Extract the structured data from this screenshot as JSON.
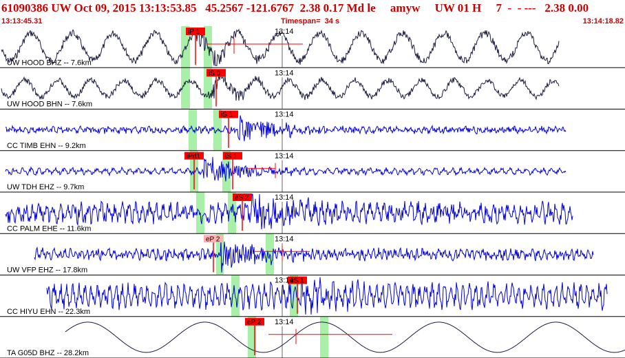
{
  "header": {
    "title": "61090386 UW Oct 09, 2015 13:13:53.85   45.2567 -121.6767  2.38 0.17 Md le     amyw     UW 01 H     7  -  - ---   2.38 0.00",
    "start_time": "13:13:45.31",
    "timespan": "Timespan=  34 s",
    "end_time": "13:14:18.82"
  },
  "colors": {
    "trace_black": "#1a1a40",
    "trace_blue": "#0000dd",
    "pick_red": "#ff0000",
    "pick_pink": "#ffb0b0",
    "window_green": "#a8f0a8",
    "header_red": "#cc0000"
  },
  "traces": [
    {
      "label": "UW HOOD BHZ -- 7.6km",
      "time_label": "13:14",
      "color": "black",
      "picks": [
        {
          "text": "iP 1",
          "tone": "red"
        }
      ]
    },
    {
      "label": "UW HOOD BHN -- 7.6km",
      "time_label": "13:14",
      "color": "black",
      "picks": [
        {
          "text": "iS 0",
          "tone": "red"
        }
      ]
    },
    {
      "label": "CC TIMB EHN -- 9.2km",
      "time_label": "13:14",
      "color": "blue",
      "picks": [
        {
          "text": "iS 1",
          "tone": "red"
        }
      ]
    },
    {
      "label": "UW TDH EHZ -- 9.7km",
      "time_label": "13:14",
      "color": "blue",
      "picks": [
        {
          "text": "iPd1",
          "tone": "red"
        },
        {
          "text": "iS 1",
          "tone": "red"
        }
      ]
    },
    {
      "label": "CC PALM EHE -- 11.6km",
      "time_label": "13:14",
      "color": "blue",
      "picks": [
        {
          "text": "eS 2",
          "tone": "red"
        }
      ]
    },
    {
      "label": "UW VFP EHZ -- 17.8km",
      "time_label": "13:14",
      "color": "blue",
      "picks": [
        {
          "text": "eP 2",
          "tone": "pink"
        }
      ]
    },
    {
      "label": "CC HIYU EHN -- 22.3km",
      "time_label": "13:14",
      "color": "blue",
      "picks": [
        {
          "text": "eS 1",
          "tone": "red"
        }
      ]
    },
    {
      "label": "TA G05D BHZ -- 28.2km",
      "time_label": "13:14",
      "color": "black",
      "picks": [
        {
          "text": "eP 2",
          "tone": "red"
        }
      ]
    }
  ]
}
